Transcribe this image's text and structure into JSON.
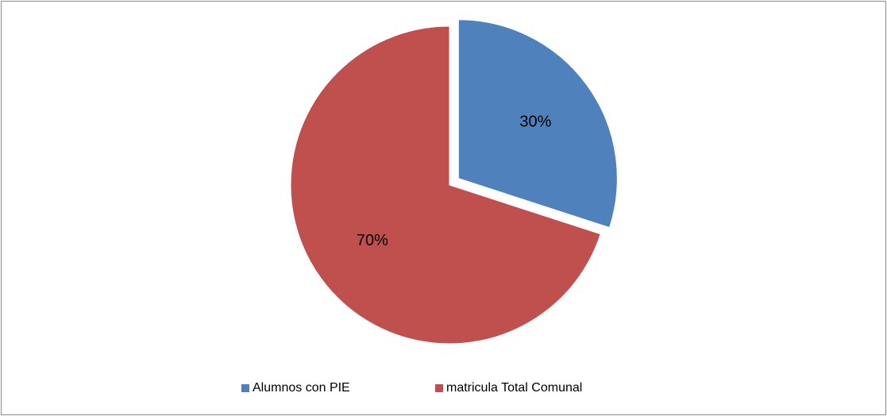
{
  "chart_data": {
    "type": "pie",
    "categories": [
      "Alumnos con PIE",
      "matricula Total Comunal"
    ],
    "values": [
      30,
      70
    ],
    "value_labels": [
      "30%",
      "70%"
    ],
    "colors": [
      "#4f81bd",
      "#c0504d"
    ],
    "explode": [
      true,
      false
    ],
    "legend": "bottom"
  }
}
